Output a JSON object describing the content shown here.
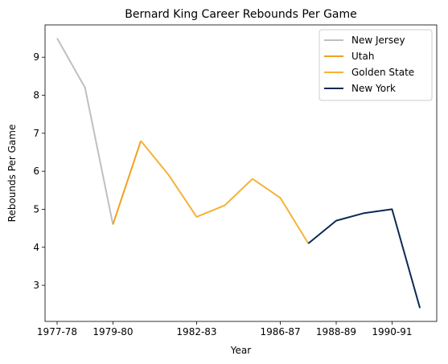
{
  "chart_data": {
    "type": "line",
    "title": "Bernard King Career Rebounds Per Game",
    "xlabel": "Year",
    "ylabel": "Rebounds Per Game",
    "x_tick_labels": [
      "1977-78",
      "1979-80",
      "1982-83",
      "1986-87",
      "1988-89",
      "1990-91"
    ],
    "x_tick_indices": [
      0,
      2,
      5,
      8,
      10,
      12
    ],
    "ylim": [
      2.05,
      9.85
    ],
    "y_ticks": [
      3,
      4,
      5,
      6,
      7,
      8,
      9
    ],
    "grid": false,
    "legend_position": "top-right",
    "series": [
      {
        "name": "New Jersey",
        "color": "#bfbfbf",
        "x": [
          0,
          1,
          2
        ],
        "values": [
          9.5,
          8.2,
          4.6
        ]
      },
      {
        "name": "Utah",
        "color": "#f0a21f",
        "x": [
          2,
          3
        ],
        "values": [
          4.6,
          6.8
        ]
      },
      {
        "name": "Golden State",
        "color": "#f5b335",
        "x": [
          3,
          4,
          5,
          6,
          7,
          8,
          9
        ],
        "values": [
          6.8,
          5.9,
          4.8,
          5.1,
          5.8,
          5.3,
          4.1
        ]
      },
      {
        "name": "New York",
        "color": "#0b2a52",
        "x": [
          9,
          10,
          11,
          12,
          13
        ],
        "values": [
          4.1,
          4.7,
          4.9,
          5.0,
          2.4
        ]
      }
    ]
  }
}
